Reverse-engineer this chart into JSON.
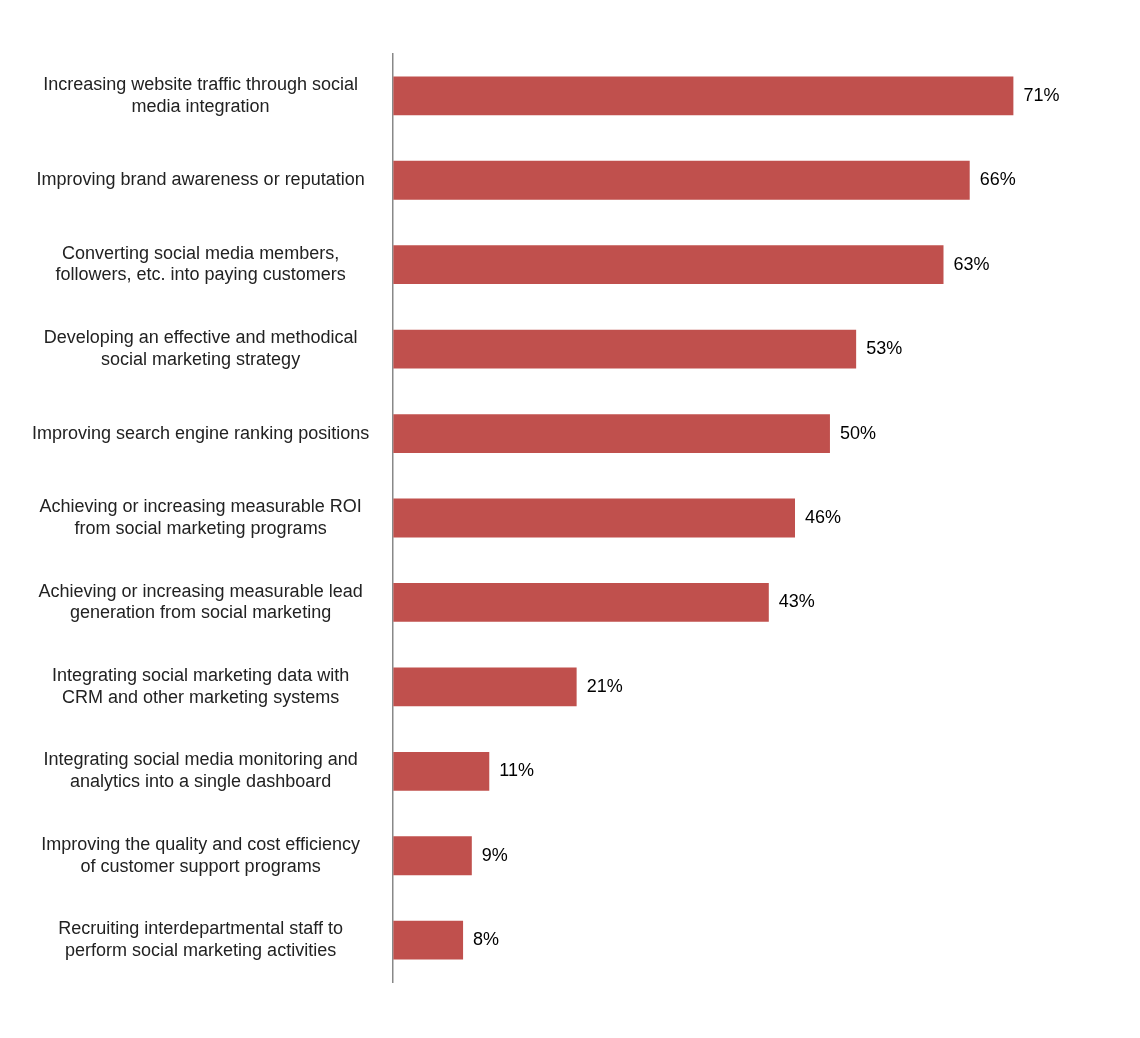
{
  "chart_data": {
    "type": "bar",
    "orientation": "horizontal",
    "categories": [
      "Increasing website traffic through social media integration",
      "Improving brand awareness or reputation",
      "Converting social media members, followers, etc. into paying customers",
      "Developing an effective and methodical social marketing strategy",
      "Improving search engine ranking positions",
      "Achieving or increasing measurable ROI from social marketing programs",
      "Achieving or increasing measurable lead generation from social marketing",
      "Integrating social marketing data with CRM and other marketing systems",
      "Integrating social media monitoring and analytics into a single dashboard",
      "Improving the quality and cost efficiency of customer support programs",
      "Recruiting interdepartmental staff to perform social marketing activities"
    ],
    "values": [
      71,
      66,
      63,
      53,
      50,
      46,
      43,
      21,
      11,
      9,
      8
    ],
    "value_labels": [
      "71%",
      "66%",
      "63%",
      "53%",
      "50%",
      "46%",
      "43%",
      "21%",
      "11%",
      "9%",
      "8%"
    ],
    "color": "#c0504d"
  }
}
